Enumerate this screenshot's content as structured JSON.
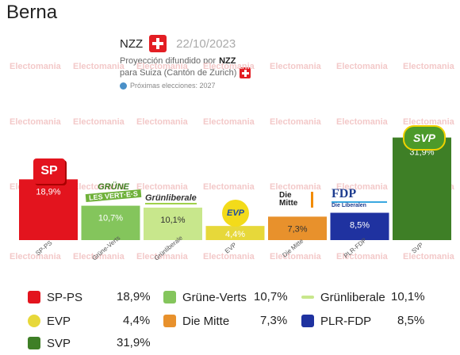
{
  "page_title": "Berna",
  "header": {
    "source": "NZZ",
    "date": "22/10/2023",
    "projection_text": "Proyección difundido por",
    "projection_source": "NZZ",
    "projection_region": "para Suiza (Cantón de Zurich)",
    "next_elections": "Próximas elecciones: 2027"
  },
  "watermark": "Electomania",
  "colors": {
    "SP-PS": "#e3141e",
    "Grüne-Verts": "#84c55c",
    "Grünliberale": "#c8e78c",
    "EVP": "#e7d83a",
    "Die Mitte": "#e8912c",
    "PLR-FDP": "#1f32a0",
    "SVP": "#3e7f26"
  },
  "chart_data": {
    "type": "bar",
    "categories": [
      "SP-PS",
      "Grüne-Verts",
      "Grünliberale",
      "EVP",
      "Die Mitte",
      "PLR-FDP",
      "SVP"
    ],
    "values": [
      18.9,
      10.7,
      10.1,
      4.4,
      7.3,
      8.5,
      31.9
    ],
    "value_labels": [
      "18,9%",
      "10,7%",
      "10,1%",
      "4,4%",
      "7,3%",
      "8,5%",
      "31,9%"
    ],
    "tick_labels": [
      "SP-PS",
      "Grüne-Verts",
      "Grünliberale",
      "EVP",
      "Die Mitte",
      "PLR-FDP",
      "SVP"
    ],
    "ylim": [
      0,
      35
    ],
    "grid": false
  },
  "legend": [
    {
      "name": "SP-PS",
      "value": "18,9%",
      "icon": "sp-logo-icon"
    },
    {
      "name": "Grüne-Verts",
      "value": "10,7%",
      "icon": "gruene-logo-icon"
    },
    {
      "name": "Grünliberale",
      "value": "10,1%",
      "icon": "grunliberale-logo-icon"
    },
    {
      "name": "EVP",
      "value": "4,4%",
      "icon": "evp-logo-icon"
    },
    {
      "name": "Die Mitte",
      "value": "7,3%",
      "icon": "mitte-logo-icon"
    },
    {
      "name": "PLR-FDP",
      "value": "8,5%",
      "icon": "fdp-logo-icon"
    },
    {
      "name": "SVP",
      "value": "31,9%",
      "icon": "svp-logo-icon"
    }
  ],
  "logos": {
    "sp": "SP",
    "gruene_1": "GRÜNE",
    "gruene_2": "LES VERT·E·S",
    "glp": "Grünliberale",
    "evp": "EVP",
    "mitte": "Die Mitte",
    "fdp_1": "FDP",
    "fdp_2": "Die Liberalen",
    "svp": "SVP"
  }
}
